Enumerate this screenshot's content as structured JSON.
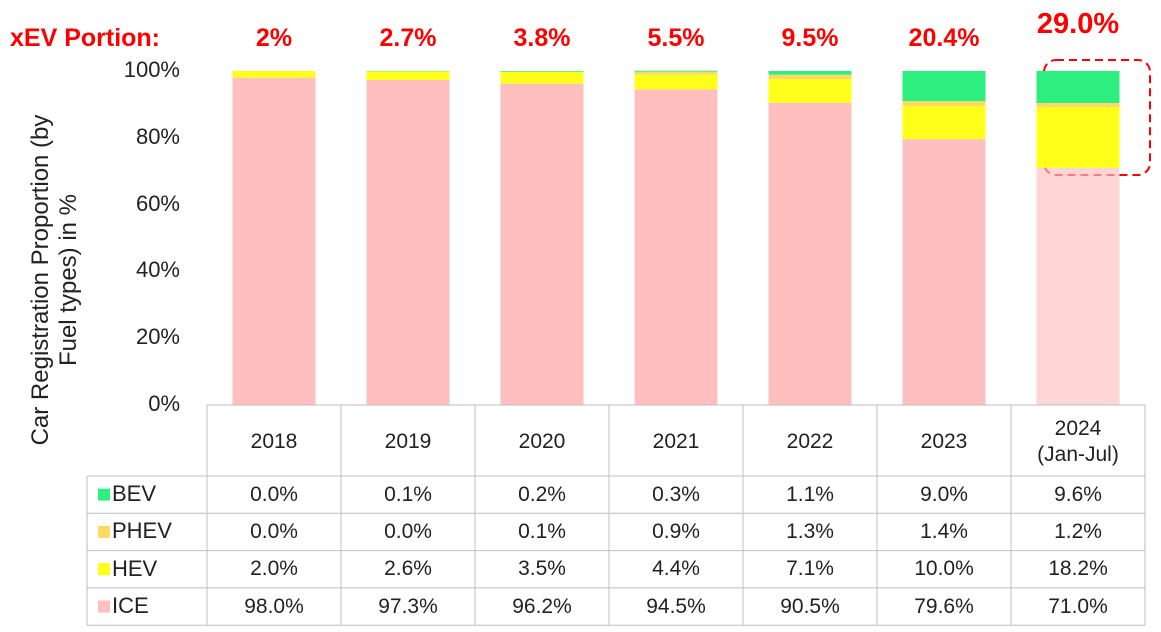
{
  "chart_data": {
    "type": "bar",
    "stacked": true,
    "y_label": "Car Registration Proportion (by Fuel types) in %",
    "categories": [
      "2018",
      "2019",
      "2020",
      "2021",
      "2022",
      "2023",
      "2024 (Jan-Jul)"
    ],
    "series": [
      {
        "name": "BEV",
        "color": "#2cef80",
        "values": [
          0.0,
          0.1,
          0.2,
          0.3,
          1.1,
          9.0,
          9.6
        ],
        "value_labels": [
          "0.0%",
          "0.1%",
          "0.2%",
          "0.3%",
          "1.1%",
          "9.0%",
          "9.6%"
        ]
      },
      {
        "name": "PHEV",
        "color": "#ffd966",
        "values": [
          0.0,
          0.0,
          0.1,
          0.9,
          1.3,
          1.4,
          1.2
        ],
        "value_labels": [
          "0.0%",
          "0.0%",
          "0.1%",
          "0.9%",
          "1.3%",
          "1.4%",
          "1.2%"
        ]
      },
      {
        "name": "HEV",
        "color": "#ffff1a",
        "values": [
          2.0,
          2.6,
          3.5,
          4.4,
          7.1,
          10.0,
          18.2
        ],
        "value_labels": [
          "2.0%",
          "2.6%",
          "3.5%",
          "4.4%",
          "7.1%",
          "10.0%",
          "18.2%"
        ]
      },
      {
        "name": "ICE",
        "color": "#ffbfbf",
        "values": [
          98.0,
          97.3,
          96.2,
          94.5,
          90.5,
          79.6,
          71.0
        ],
        "value_labels": [
          "98.0%",
          "97.3%",
          "96.2%",
          "94.5%",
          "90.5%",
          "79.6%",
          "71.0%"
        ]
      }
    ],
    "annotation": {
      "label": "xEV Portion:",
      "values": [
        2,
        2.7,
        3.8,
        5.5,
        9.5,
        20.4,
        29.0
      ],
      "value_labels": [
        "2%",
        "2.7%",
        "3.8%",
        "5.5%",
        "9.5%",
        "20.4%",
        "29.0%"
      ]
    },
    "ylim": [
      0,
      100
    ],
    "yticks": [
      {
        "value": 0,
        "label": "0%"
      },
      {
        "value": 20,
        "label": "20%"
      },
      {
        "value": 40,
        "label": "40%"
      },
      {
        "value": 60,
        "label": "60%"
      },
      {
        "value": 80,
        "label": "80%"
      },
      {
        "value": 100,
        "label": "100%"
      }
    ]
  }
}
